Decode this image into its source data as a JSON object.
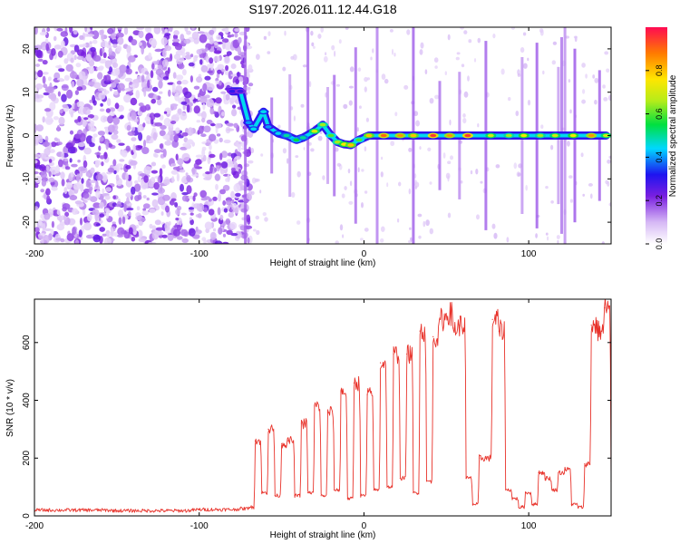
{
  "figure_title": "S197.2026.011.12.44.G18",
  "chart_data": [
    {
      "type": "heatmap",
      "xlabel": "Height of straight line (km)",
      "ylabel": "Frequency (Hz)",
      "xlim": [
        -200,
        150
      ],
      "ylim": [
        -25,
        25
      ],
      "xticks": [
        -200,
        -100,
        0,
        100
      ],
      "yticks": [
        -20,
        -10,
        0,
        10,
        20
      ],
      "noise_region_x": [
        -200,
        -72
      ],
      "signal_track": [
        {
          "x": -80,
          "f": 10.2,
          "a": 0.3
        },
        {
          "x": -75,
          "f": 10.2,
          "a": 0.28
        },
        {
          "x": -70,
          "f": 3.0,
          "a": 0.4
        },
        {
          "x": -67,
          "f": 1.5,
          "a": 0.45
        },
        {
          "x": -61,
          "f": 5.5,
          "a": 0.45
        },
        {
          "x": -58,
          "f": 2.0,
          "a": 0.4
        },
        {
          "x": -52,
          "f": 0.5,
          "a": 0.45
        },
        {
          "x": -47,
          "f": 0.0,
          "a": 0.5
        },
        {
          "x": -41,
          "f": -1.0,
          "a": 0.55
        },
        {
          "x": -37,
          "f": -0.5,
          "a": 0.5
        },
        {
          "x": -30,
          "f": 1.0,
          "a": 0.7
        },
        {
          "x": -25,
          "f": 2.5,
          "a": 0.65
        },
        {
          "x": -20,
          "f": 0.0,
          "a": 0.6
        },
        {
          "x": -16,
          "f": -1.5,
          "a": 0.65
        },
        {
          "x": -12,
          "f": -2.0,
          "a": 0.75
        },
        {
          "x": -8,
          "f": -2.2,
          "a": 0.8
        },
        {
          "x": -3,
          "f": -1.0,
          "a": 0.6
        },
        {
          "x": 3,
          "f": 0.0,
          "a": 0.8
        },
        {
          "x": 12,
          "f": 0.0,
          "a": 0.9
        },
        {
          "x": 22,
          "f": 0.0,
          "a": 0.85
        },
        {
          "x": 30,
          "f": 0.0,
          "a": 0.8
        },
        {
          "x": 42,
          "f": 0.0,
          "a": 0.95
        },
        {
          "x": 52,
          "f": 0.0,
          "a": 0.85
        },
        {
          "x": 63,
          "f": 0.0,
          "a": 0.95
        },
        {
          "x": 77,
          "f": 0.0,
          "a": 0.7
        },
        {
          "x": 88,
          "f": 0.0,
          "a": 0.65
        },
        {
          "x": 97,
          "f": 0.0,
          "a": 0.75
        },
        {
          "x": 107,
          "f": 0.0,
          "a": 0.65
        },
        {
          "x": 116,
          "f": 0.0,
          "a": 0.7
        },
        {
          "x": 127,
          "f": 0.0,
          "a": 0.75
        },
        {
          "x": 138,
          "f": 0.0,
          "a": 0.85
        },
        {
          "x": 147,
          "f": 0.0,
          "a": 0.7
        }
      ],
      "colorbar": {
        "label": "Normalized spectral amplitude",
        "range": [
          0,
          1
        ],
        "ticks": [
          0.0,
          0.2,
          0.4,
          0.6,
          0.8
        ]
      }
    },
    {
      "type": "line",
      "xlabel": "Height of straight line (km)",
      "ylabel": "SNR (10 * v/v)",
      "xlim": [
        -200,
        150
      ],
      "ylim": [
        0,
        750
      ],
      "xticks": [
        -200,
        -100,
        0,
        100
      ],
      "yticks": [
        0,
        200,
        400,
        600
      ],
      "color": "#e8322a",
      "series": [
        {
          "name": "SNR",
          "x": [
            -200,
            -150,
            -100,
            -75,
            -70,
            -66,
            -62,
            -58,
            -54,
            -50,
            -46,
            -42,
            -38,
            -34,
            -30,
            -26,
            -22,
            -18,
            -14,
            -10,
            -6,
            -2,
            2,
            6,
            10,
            14,
            18,
            22,
            26,
            30,
            34,
            38,
            42,
            46,
            50,
            54,
            58,
            62,
            66,
            70,
            74,
            78,
            82,
            86,
            90,
            94,
            98,
            102,
            106,
            110,
            114,
            118,
            122,
            126,
            130,
            134,
            138,
            142,
            146,
            150
          ],
          "y": [
            20,
            18,
            22,
            25,
            30,
            260,
            80,
            300,
            70,
            250,
            260,
            70,
            320,
            80,
            380,
            70,
            360,
            90,
            430,
            60,
            460,
            70,
            420,
            90,
            530,
            100,
            560,
            130,
            560,
            80,
            640,
            120,
            620,
            680,
            700,
            650,
            660,
            130,
            40,
            200,
            200,
            680,
            640,
            90,
            60,
            30,
            80,
            40,
            150,
            130,
            90,
            150,
            160,
            40,
            30,
            180,
            660,
            640,
            720,
            120
          ]
        }
      ]
    }
  ]
}
